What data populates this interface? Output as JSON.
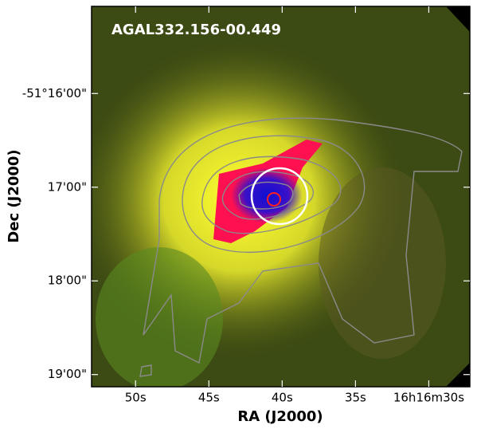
{
  "chart_data": {
    "type": "image",
    "title": "AGAL332.156-00.449",
    "xlabel": "RA (J2000)",
    "ylabel": "Dec (J2000)",
    "xlim": [
      53.0,
      27.2
    ],
    "xticks": [
      {
        "value": 50,
        "label": "50s"
      },
      {
        "value": 45,
        "label": "45s"
      },
      {
        "value": 40,
        "label": "40s"
      },
      {
        "value": 35,
        "label": "35s"
      },
      {
        "value": 30,
        "label": "16h16m30s"
      }
    ],
    "ylim": [
      19.13,
      15.07
    ],
    "yticks": [
      {
        "value": 16,
        "label": "-51°16'00\""
      },
      {
        "value": 17,
        "label": "17'00\""
      },
      {
        "value": 18,
        "label": "18'00\""
      },
      {
        "value": 19,
        "label": "19'00\""
      }
    ]
  }
}
